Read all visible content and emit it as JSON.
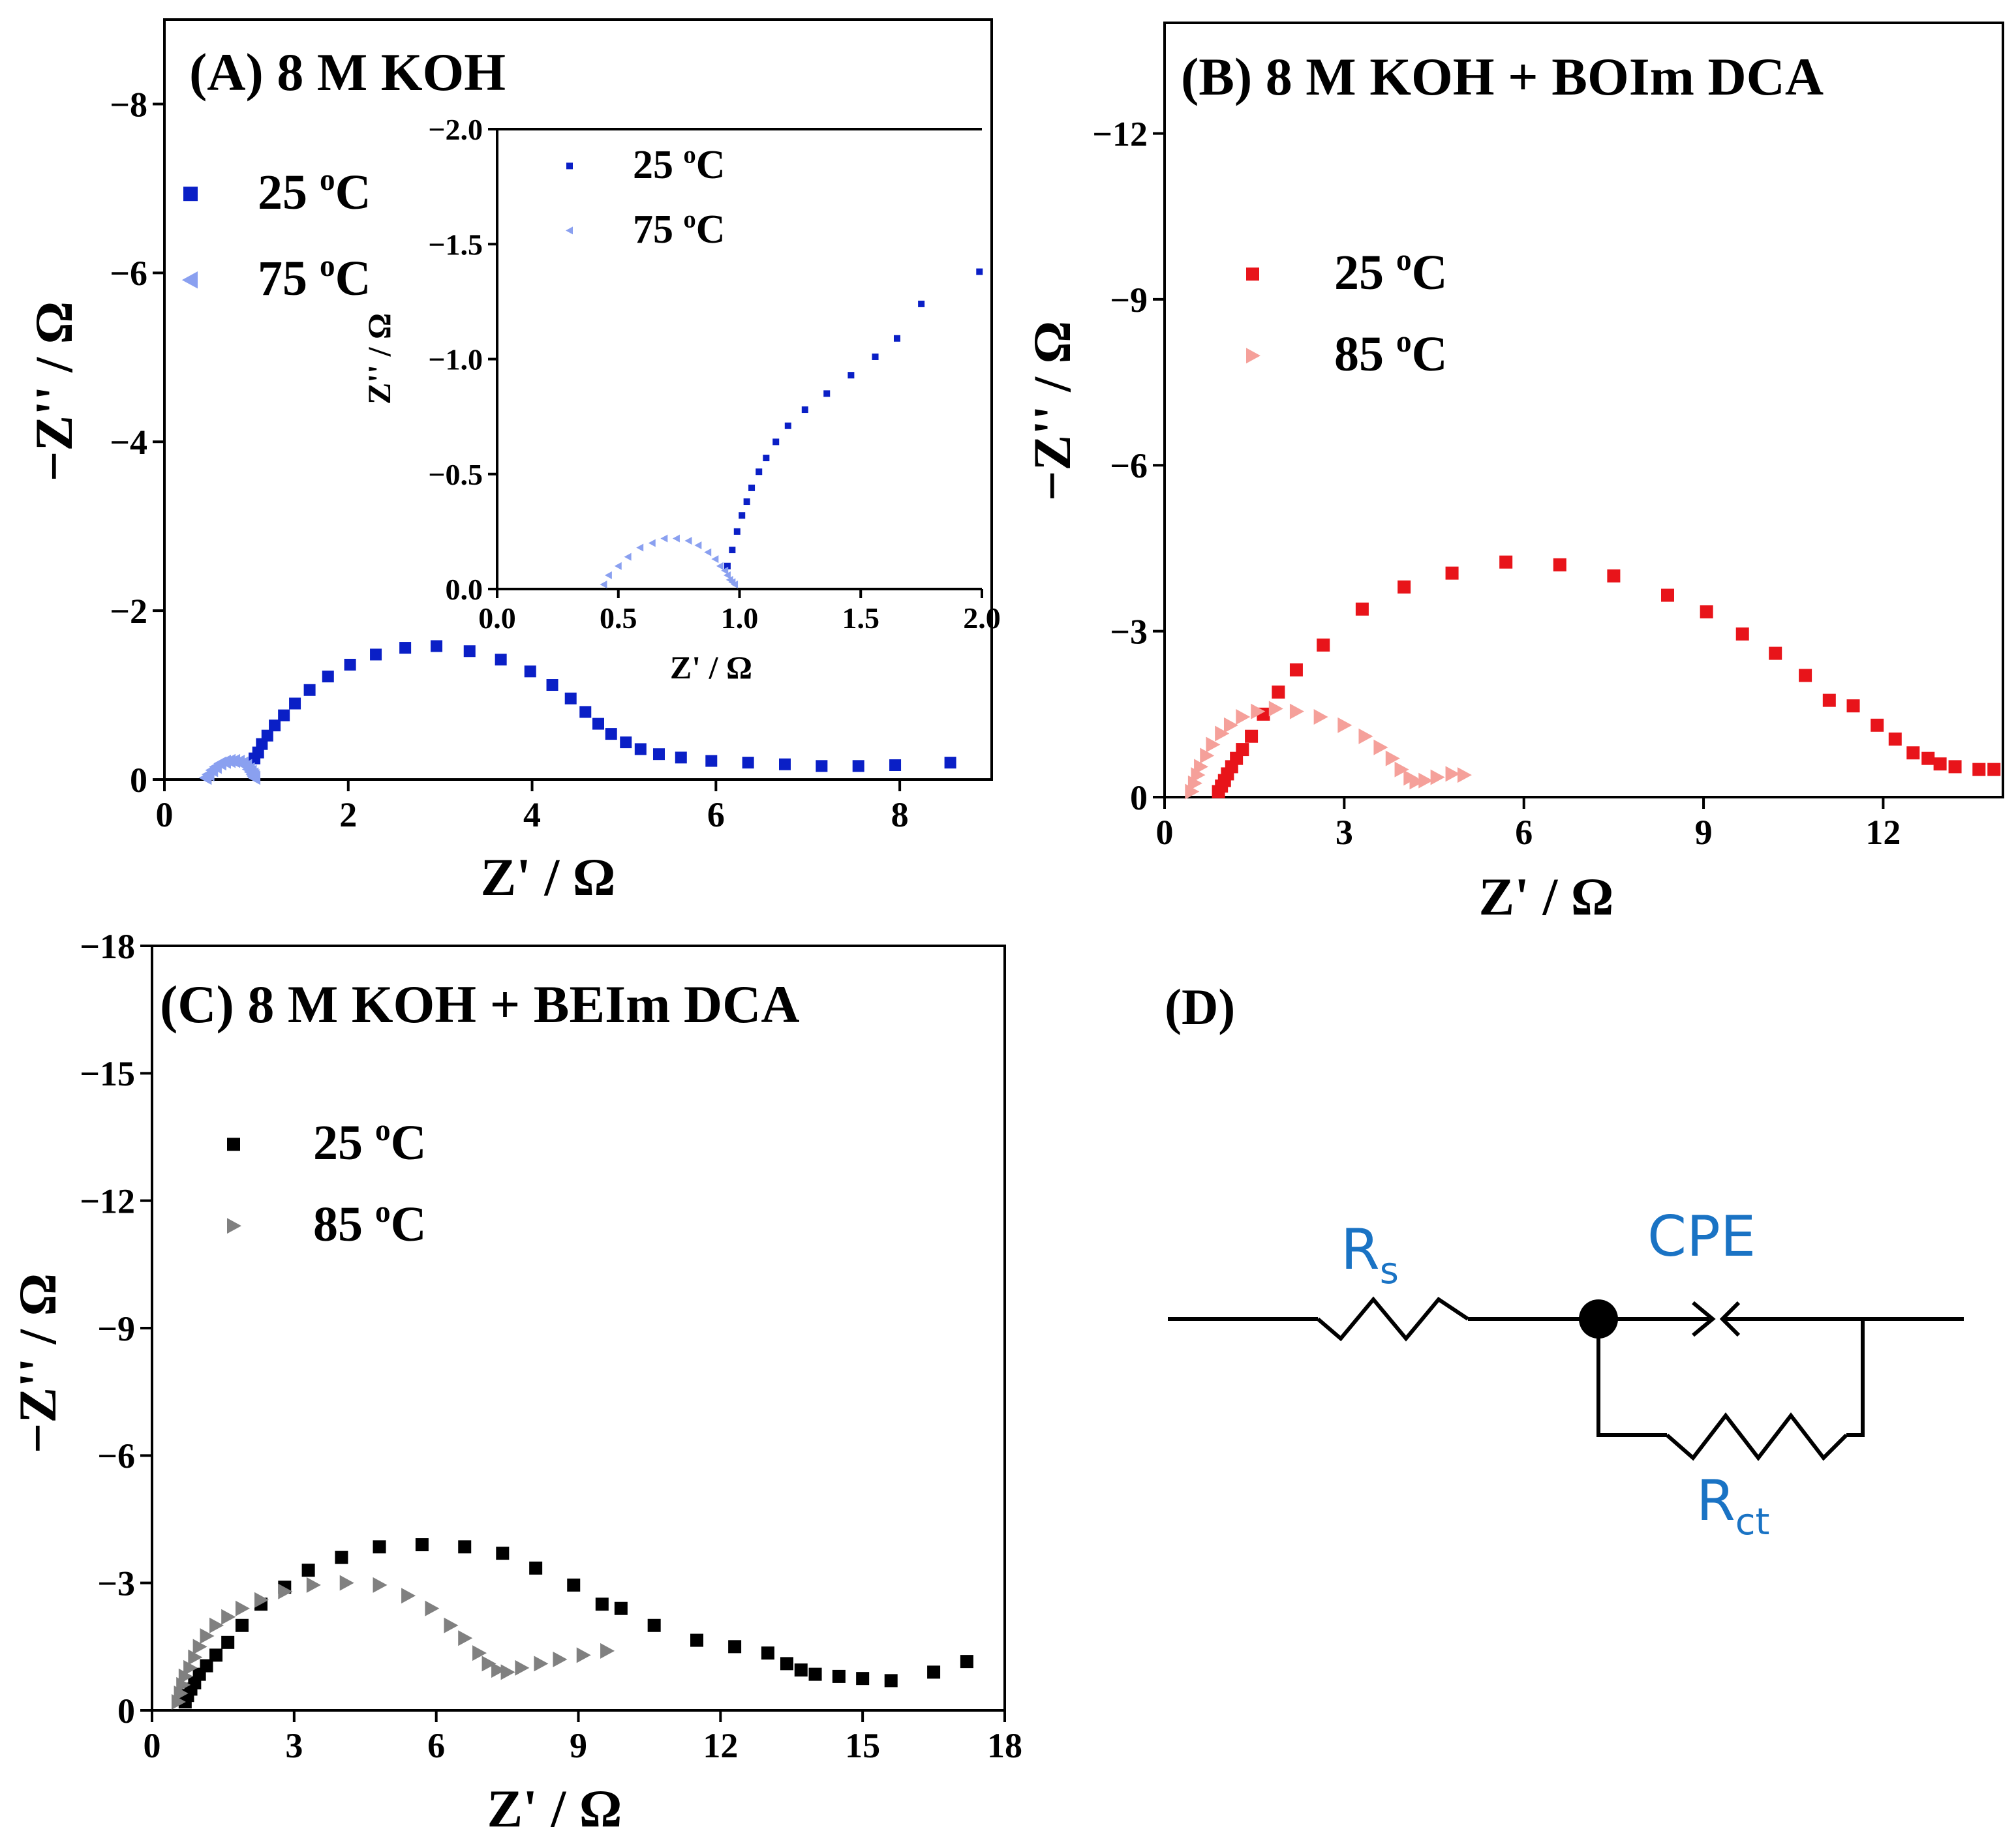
{
  "colors": {
    "blue_dark": "#0a1fc6",
    "blue_light": "#8aa0f0",
    "red_dark": "#e8141a",
    "red_light": "#f5a09a",
    "black": "#000000",
    "gray": "#808080",
    "circuit_label": "#1a73c4"
  },
  "chart_data": [
    {
      "id": "A",
      "type": "scatter",
      "title": "(A) 8 M KOH",
      "xlabel": "Z' / Ω",
      "ylabel": "−Z'' / Ω",
      "xlim": [
        0,
        9
      ],
      "ylim": [
        0,
        -9
      ],
      "xticks": [
        0,
        2,
        4,
        6,
        8
      ],
      "xtick_labels": [
        "0",
        "2",
        "4",
        "6",
        "8"
      ],
      "yticks": [
        0,
        -2,
        -4,
        -6,
        -8
      ],
      "ytick_labels": [
        "0",
        "−2",
        "−4",
        "−6",
        "−8"
      ],
      "legend": [
        {
          "label": "25 ",
          "sup": "o",
          "unit": "C",
          "marker": "square",
          "color": "blue_dark"
        },
        {
          "label": "75 ",
          "sup": "o",
          "unit": "C",
          "marker": "triangle-left",
          "color": "blue_light"
        }
      ],
      "series": [
        {
          "name": "25 oC",
          "marker": "square",
          "color": "blue_dark",
          "x": [
            0.98,
            1.02,
            1.06,
            1.12,
            1.2,
            1.3,
            1.42,
            1.58,
            1.78,
            2.02,
            2.3,
            2.62,
            2.96,
            3.32,
            3.66,
            3.98,
            4.22,
            4.42,
            4.58,
            4.72,
            4.86,
            5.02,
            5.18,
            5.38,
            5.62,
            5.95,
            6.35,
            6.75,
            7.15,
            7.55,
            7.95,
            8.55
          ],
          "y": [
            -0.25,
            -0.32,
            -0.42,
            -0.52,
            -0.64,
            -0.76,
            -0.9,
            -1.06,
            -1.22,
            -1.36,
            -1.48,
            -1.56,
            -1.58,
            -1.52,
            -1.42,
            -1.28,
            -1.12,
            -0.96,
            -0.8,
            -0.66,
            -0.54,
            -0.44,
            -0.36,
            -0.3,
            -0.26,
            -0.22,
            -0.2,
            -0.18,
            -0.16,
            -0.16,
            -0.17,
            -0.2
          ]
        },
        {
          "name": "75 oC",
          "marker": "triangle-left",
          "color": "blue_light",
          "x": [
            0.45,
            0.48,
            0.52,
            0.56,
            0.61,
            0.66,
            0.71,
            0.76,
            0.81,
            0.85,
            0.89,
            0.92,
            0.94,
            0.96,
            0.97,
            0.98
          ],
          "y": [
            -0.02,
            -0.06,
            -0.11,
            -0.15,
            -0.19,
            -0.21,
            -0.22,
            -0.22,
            -0.21,
            -0.19,
            -0.16,
            -0.12,
            -0.09,
            -0.06,
            -0.04,
            -0.02
          ]
        }
      ],
      "inset": {
        "xlabel": "Z' / Ω",
        "ylabel": "Z'' / Ω",
        "xlim": [
          0,
          2
        ],
        "ylim": [
          0,
          -2
        ],
        "xticks": [
          0,
          0.5,
          1,
          1.5,
          2
        ],
        "xtick_labels": [
          "0.0",
          "0.5",
          "1.0",
          "1.5",
          "2.0"
        ],
        "yticks": [
          0,
          -0.5,
          -1,
          -1.5,
          -2
        ],
        "ytick_labels": [
          "0.0",
          "−0.5",
          "−1.0",
          "−1.5",
          "−2.0"
        ],
        "legend": [
          {
            "label": "25 ",
            "sup": "o",
            "unit": "C",
            "marker": "square",
            "color": "blue_dark"
          },
          {
            "label": "75 ",
            "sup": "o",
            "unit": "C",
            "marker": "triangle-left",
            "color": "blue_light"
          }
        ],
        "series": [
          {
            "name": "25 oC",
            "marker": "square",
            "color": "blue_dark",
            "x": [
              0.95,
              0.97,
              0.99,
              1.01,
              1.03,
              1.05,
              1.08,
              1.11,
              1.15,
              1.2,
              1.27,
              1.36,
              1.46,
              1.56,
              1.65,
              1.75,
              1.99
            ],
            "y": [
              -0.1,
              -0.17,
              -0.25,
              -0.32,
              -0.38,
              -0.44,
              -0.51,
              -0.57,
              -0.64,
              -0.71,
              -0.78,
              -0.85,
              -0.93,
              -1.01,
              -1.09,
              -1.24,
              -1.38
            ]
          },
          {
            "name": "75 oC",
            "marker": "triangle-left",
            "color": "blue_light",
            "x": [
              0.44,
              0.46,
              0.5,
              0.54,
              0.59,
              0.64,
              0.69,
              0.74,
              0.79,
              0.83,
              0.87,
              0.9,
              0.92,
              0.94,
              0.95,
              0.96,
              0.97,
              0.98
            ],
            "y": [
              -0.02,
              -0.06,
              -0.1,
              -0.14,
              -0.18,
              -0.2,
              -0.22,
              -0.22,
              -0.21,
              -0.19,
              -0.16,
              -0.13,
              -0.1,
              -0.08,
              -0.06,
              -0.04,
              -0.03,
              -0.02
            ]
          }
        ]
      }
    },
    {
      "id": "B",
      "type": "scatter",
      "title": "(B) 8 M KOH + BOIm DCA",
      "xlabel": "Z' / Ω",
      "ylabel": "−Z'' / Ω",
      "xlim": [
        0,
        14
      ],
      "ylim": [
        0,
        -14
      ],
      "xticks": [
        0,
        3,
        6,
        9,
        12
      ],
      "xtick_labels": [
        "0",
        "3",
        "6",
        "9",
        "12"
      ],
      "yticks": [
        0,
        -3,
        -6,
        -9,
        -12
      ],
      "ytick_labels": [
        "0",
        "−3",
        "−6",
        "−9",
        "−12"
      ],
      "legend": [
        {
          "label": "25 ",
          "sup": "o",
          "unit": "C",
          "marker": "square",
          "color": "red_dark"
        },
        {
          "label": "85 ",
          "sup": "o",
          "unit": "C",
          "marker": "triangle-right",
          "color": "red_light"
        }
      ],
      "series": [
        {
          "name": "25 oC",
          "marker": "square",
          "color": "red_dark",
          "x": [
            0.9,
            0.95,
            1.0,
            1.05,
            1.12,
            1.2,
            1.3,
            1.45,
            1.65,
            1.9,
            2.2,
            2.65,
            3.3,
            4.0,
            4.8,
            5.7,
            6.6,
            7.5,
            8.4,
            9.05,
            9.65,
            10.2,
            10.7,
            11.1,
            11.5,
            11.9,
            12.2,
            12.5,
            12.75,
            12.95,
            13.2,
            13.6,
            13.85
          ],
          "y": [
            -0.1,
            -0.2,
            -0.3,
            -0.42,
            -0.55,
            -0.7,
            -0.86,
            -1.1,
            -1.5,
            -1.9,
            -2.3,
            -2.75,
            -3.4,
            -3.8,
            -4.05,
            -4.25,
            -4.2,
            -4.0,
            -3.65,
            -3.35,
            -2.95,
            -2.6,
            -2.2,
            -1.75,
            -1.65,
            -1.3,
            -1.05,
            -0.8,
            -0.7,
            -0.6,
            -0.55,
            -0.5,
            -0.5
          ]
        },
        {
          "name": "85 oC",
          "marker": "triangle-right",
          "color": "red_light",
          "x": [
            0.45,
            0.5,
            0.55,
            0.6,
            0.7,
            0.8,
            0.95,
            1.1,
            1.3,
            1.55,
            1.85,
            2.2,
            2.6,
            3.0,
            3.35,
            3.6,
            3.8,
            3.95,
            4.1,
            4.2,
            4.35,
            4.55,
            4.8,
            5.0
          ],
          "y": [
            -0.1,
            -0.25,
            -0.4,
            -0.55,
            -0.75,
            -0.95,
            -1.15,
            -1.3,
            -1.45,
            -1.55,
            -1.6,
            -1.55,
            -1.45,
            -1.3,
            -1.1,
            -0.9,
            -0.7,
            -0.5,
            -0.35,
            -0.28,
            -0.3,
            -0.36,
            -0.42,
            -0.4
          ]
        }
      ]
    },
    {
      "id": "C",
      "type": "scatter",
      "title": "(C) 8 M KOH + BEIm DCA",
      "xlabel": "Z' / Ω",
      "ylabel": "−Z'' / Ω",
      "xlim": [
        0,
        18
      ],
      "ylim": [
        0,
        -18
      ],
      "xticks": [
        0,
        3,
        6,
        9,
        12,
        15,
        18
      ],
      "xtick_labels": [
        "0",
        "3",
        "6",
        "9",
        "12",
        "15",
        "18"
      ],
      "yticks": [
        0,
        -3,
        -6,
        -9,
        -12,
        -15,
        -18
      ],
      "ytick_labels": [
        "0",
        "−3",
        "−6",
        "−9",
        "−12",
        "−15",
        "−18"
      ],
      "legend": [
        {
          "label": "25 ",
          "sup": "o",
          "unit": "C",
          "marker": "square",
          "color": "black"
        },
        {
          "label": "85 ",
          "sup": "o",
          "unit": "C",
          "marker": "triangle-right",
          "color": "gray"
        }
      ],
      "series": [
        {
          "name": "25 oC",
          "marker": "square",
          "color": "black",
          "x": [
            0.7,
            0.75,
            0.82,
            0.9,
            1.0,
            1.15,
            1.35,
            1.6,
            1.9,
            2.3,
            2.8,
            3.3,
            4.0,
            4.8,
            5.7,
            6.6,
            7.4,
            8.1,
            8.9,
            9.5,
            9.9,
            10.6,
            11.5,
            12.3,
            13.0,
            13.4,
            13.7,
            14.0,
            14.5,
            15.0,
            15.6,
            16.5,
            17.2
          ],
          "y": [
            -0.2,
            -0.35,
            -0.5,
            -0.65,
            -0.85,
            -1.05,
            -1.3,
            -1.6,
            -2.0,
            -2.5,
            -2.9,
            -3.3,
            -3.6,
            -3.85,
            -3.9,
            -3.85,
            -3.7,
            -3.35,
            -2.95,
            -2.5,
            -2.4,
            -2.0,
            -1.65,
            -1.5,
            -1.35,
            -1.1,
            -0.95,
            -0.85,
            -0.8,
            -0.75,
            -0.7,
            -0.9,
            -1.15
          ]
        },
        {
          "name": "85 oC",
          "marker": "triangle-right",
          "color": "gray",
          "x": [
            0.55,
            0.6,
            0.65,
            0.7,
            0.8,
            0.9,
            1.0,
            1.15,
            1.35,
            1.6,
            1.9,
            2.3,
            2.8,
            3.4,
            4.1,
            4.8,
            5.4,
            5.9,
            6.3,
            6.6,
            6.9,
            7.1,
            7.3,
            7.5,
            7.8,
            8.2,
            8.6,
            9.1,
            9.6
          ],
          "y": [
            -0.2,
            -0.4,
            -0.6,
            -0.8,
            -1.0,
            -1.25,
            -1.5,
            -1.75,
            -2.0,
            -2.2,
            -2.4,
            -2.6,
            -2.8,
            -2.95,
            -3.0,
            -2.95,
            -2.7,
            -2.4,
            -2.0,
            -1.7,
            -1.35,
            -1.1,
            -0.95,
            -0.9,
            -1.0,
            -1.1,
            -1.2,
            -1.3,
            -1.4
          ]
        }
      ]
    }
  ],
  "panel_d": {
    "title": "(D)",
    "rs_main": "R",
    "rs_sub": "s",
    "cpe_label": "CPE",
    "rct_main": "R",
    "rct_sub": "ct"
  }
}
